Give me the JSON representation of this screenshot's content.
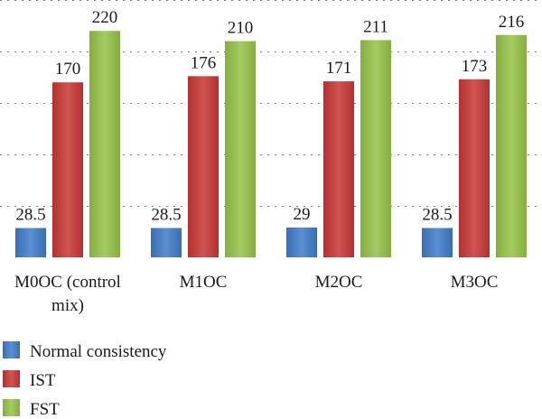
{
  "chart_data": {
    "type": "bar",
    "categories": [
      "M0OC (control mix)",
      "M1OC",
      "M2OC",
      "M3OC"
    ],
    "category_label_lines": [
      [
        "M0OC (control",
        "mix)"
      ],
      [
        "M1OC"
      ],
      [
        "M2OC"
      ],
      [
        "M3OC"
      ]
    ],
    "series": [
      {
        "name": "Normal consistency",
        "values": [
          28.5,
          28.5,
          29,
          28.5
        ],
        "labels": [
          "28.5",
          "28.5",
          "29",
          "28.5"
        ],
        "color": "#4a7fc1"
      },
      {
        "name": "IST",
        "values": [
          170,
          176,
          171,
          173
        ],
        "labels": [
          "170",
          "176",
          "171",
          "173"
        ],
        "color": "#c0413f"
      },
      {
        "name": "FST",
        "values": [
          220,
          210,
          211,
          216
        ],
        "labels": [
          "220",
          "210",
          "211",
          "216"
        ],
        "color": "#94bc4f"
      }
    ],
    "ylim": [
      0,
      250
    ],
    "grid": true,
    "legend": "bottom-left"
  }
}
